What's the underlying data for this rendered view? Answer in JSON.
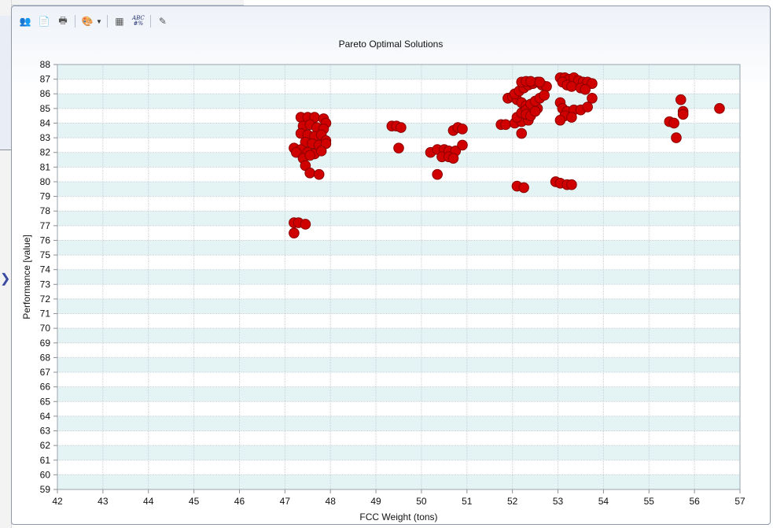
{
  "toolbar": {
    "buttons": [
      {
        "name": "users-icon",
        "glyph": "👥"
      },
      {
        "name": "copy-icon",
        "glyph": "📄"
      },
      {
        "name": "print-icon",
        "glyph": "🖶"
      },
      {
        "name": "palette-icon",
        "glyph": "🎨"
      },
      {
        "name": "chart-properties-icon",
        "glyph": "▦"
      },
      {
        "name": "number-format-icon",
        "glyph": "ABC #%"
      },
      {
        "name": "magic-wand-icon",
        "glyph": "✎"
      }
    ]
  },
  "chart_data": {
    "type": "scatter",
    "title": "Pareto Optimal Solutions",
    "xlabel": "FCC Weight (tons)",
    "ylabel": "Performance [value]",
    "xlim": [
      42,
      57
    ],
    "ylim": [
      59,
      88
    ],
    "grid": true,
    "marker_color": "#d10000",
    "x_ticks": [
      "42",
      "43",
      "44",
      "45",
      "46",
      "47",
      "48",
      "49",
      "50",
      "51",
      "52",
      "53",
      "54",
      "55",
      "56",
      "57"
    ],
    "y_ticks": [
      "59",
      "60",
      "61",
      "62",
      "63",
      "64",
      "65",
      "66",
      "67",
      "68",
      "69",
      "70",
      "71",
      "72",
      "73",
      "74",
      "75",
      "76",
      "77",
      "78",
      "79",
      "80",
      "81",
      "82",
      "83",
      "84",
      "85",
      "86",
      "87",
      "88"
    ],
    "series": [
      {
        "points": [
          [
            47.2,
            77.2
          ],
          [
            47.3,
            77.2
          ],
          [
            47.45,
            77.1
          ],
          [
            47.2,
            76.5
          ],
          [
            47.35,
            84.4
          ],
          [
            47.5,
            84.4
          ],
          [
            47.65,
            84.4
          ],
          [
            47.85,
            84.3
          ],
          [
            47.9,
            84.0
          ],
          [
            47.4,
            83.8
          ],
          [
            47.55,
            83.9
          ],
          [
            47.7,
            83.7
          ],
          [
            47.85,
            83.6
          ],
          [
            47.35,
            83.3
          ],
          [
            47.5,
            83.2
          ],
          [
            47.65,
            83.1
          ],
          [
            47.8,
            83.2
          ],
          [
            47.9,
            82.8
          ],
          [
            47.45,
            82.7
          ],
          [
            47.6,
            82.6
          ],
          [
            47.75,
            82.5
          ],
          [
            47.9,
            82.6
          ],
          [
            47.2,
            82.3
          ],
          [
            47.35,
            82.2
          ],
          [
            47.5,
            82.0
          ],
          [
            47.65,
            81.9
          ],
          [
            47.8,
            82.1
          ],
          [
            47.25,
            82.0
          ],
          [
            47.4,
            81.6
          ],
          [
            47.55,
            81.8
          ],
          [
            47.45,
            81.1
          ],
          [
            47.55,
            80.6
          ],
          [
            47.75,
            80.5
          ],
          [
            49.35,
            83.8
          ],
          [
            49.45,
            83.8
          ],
          [
            49.55,
            83.7
          ],
          [
            49.5,
            82.3
          ],
          [
            50.2,
            82.0
          ],
          [
            50.35,
            82.2
          ],
          [
            50.5,
            82.2
          ],
          [
            50.6,
            82.1
          ],
          [
            50.75,
            82.1
          ],
          [
            50.45,
            81.7
          ],
          [
            50.6,
            81.7
          ],
          [
            50.7,
            81.6
          ],
          [
            50.35,
            80.5
          ],
          [
            50.7,
            83.5
          ],
          [
            50.8,
            83.7
          ],
          [
            50.9,
            83.6
          ],
          [
            50.9,
            82.5
          ],
          [
            51.75,
            83.9
          ],
          [
            51.85,
            83.9
          ],
          [
            52.05,
            84.0
          ],
          [
            52.2,
            84.1
          ],
          [
            52.35,
            84.2
          ],
          [
            51.9,
            85.7
          ],
          [
            52.0,
            85.8
          ],
          [
            52.1,
            85.6
          ],
          [
            52.2,
            85.4
          ],
          [
            52.3,
            85.2
          ],
          [
            52.45,
            85.1
          ],
          [
            52.55,
            85.0
          ],
          [
            52.05,
            86.0
          ],
          [
            52.15,
            86.2
          ],
          [
            52.25,
            86.4
          ],
          [
            52.35,
            86.6
          ],
          [
            52.45,
            86.7
          ],
          [
            52.55,
            86.8
          ],
          [
            52.65,
            86.6
          ],
          [
            52.75,
            86.5
          ],
          [
            52.2,
            86.8
          ],
          [
            52.3,
            86.85
          ],
          [
            52.4,
            86.85
          ],
          [
            52.6,
            86.8
          ],
          [
            52.1,
            84.4
          ],
          [
            52.2,
            84.7
          ],
          [
            52.3,
            84.9
          ],
          [
            52.4,
            85.3
          ],
          [
            52.5,
            85.5
          ],
          [
            52.6,
            85.7
          ],
          [
            52.7,
            85.9
          ],
          [
            52.3,
            84.6
          ],
          [
            52.4,
            84.5
          ],
          [
            52.5,
            84.8
          ],
          [
            52.2,
            83.3
          ],
          [
            52.1,
            79.7
          ],
          [
            52.25,
            79.6
          ],
          [
            52.95,
            80.0
          ],
          [
            53.05,
            79.9
          ],
          [
            53.2,
            79.8
          ],
          [
            53.3,
            79.8
          ],
          [
            53.05,
            87.1
          ],
          [
            53.15,
            87.1
          ],
          [
            53.25,
            87.0
          ],
          [
            53.35,
            87.1
          ],
          [
            53.45,
            86.9
          ],
          [
            53.55,
            86.8
          ],
          [
            53.65,
            86.8
          ],
          [
            53.75,
            86.7
          ],
          [
            53.1,
            86.8
          ],
          [
            53.2,
            86.6
          ],
          [
            53.3,
            86.5
          ],
          [
            53.5,
            86.4
          ],
          [
            53.6,
            86.3
          ],
          [
            53.05,
            85.4
          ],
          [
            53.1,
            85.0
          ],
          [
            53.2,
            84.8
          ],
          [
            53.35,
            84.9
          ],
          [
            53.5,
            84.9
          ],
          [
            53.65,
            85.1
          ],
          [
            53.75,
            85.7
          ],
          [
            53.15,
            84.5
          ],
          [
            53.3,
            84.4
          ],
          [
            53.05,
            84.2
          ],
          [
            55.45,
            84.1
          ],
          [
            55.55,
            84.0
          ],
          [
            55.7,
            85.6
          ],
          [
            55.75,
            84.8
          ],
          [
            55.75,
            84.6
          ],
          [
            55.6,
            83.0
          ],
          [
            56.55,
            85.0
          ]
        ]
      }
    ]
  }
}
